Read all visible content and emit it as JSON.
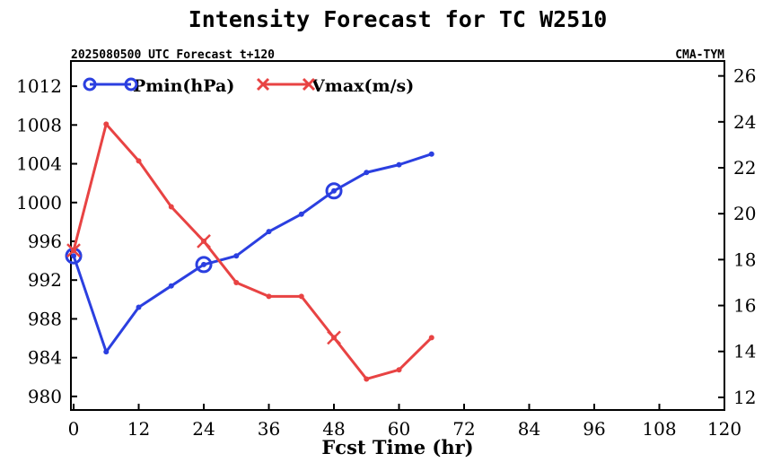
{
  "chart_data": {
    "type": "line",
    "title": "Intensity Forecast for TC W2510",
    "subtitle_left": "2025080500 UTC Forecast t+120",
    "subtitle_right": "CMA-TYM",
    "xlabel": "Fcst Time (hr)",
    "xlim": [
      -0.5,
      120
    ],
    "xticks": [
      0,
      12,
      24,
      36,
      48,
      60,
      72,
      84,
      96,
      108,
      120
    ],
    "y_left": {
      "lim": [
        978.6,
        1014.6
      ],
      "ticks": [
        980,
        984,
        988,
        992,
        996,
        1000,
        1004,
        1008,
        1012
      ]
    },
    "y_right": {
      "lim": [
        11.45,
        26.65
      ],
      "ticks": [
        12,
        14,
        16,
        18,
        20,
        22,
        24,
        26
      ]
    },
    "x": [
      0,
      6,
      12,
      18,
      24,
      30,
      36,
      42,
      48,
      54,
      60,
      66
    ],
    "series": [
      {
        "name": "Pmin(hPa)",
        "axis": "left",
        "color": "#2b3fe0",
        "marker": "circle",
        "marker_every": 4,
        "values": [
          994.5,
          984.6,
          989.2,
          991.4,
          993.6,
          994.5,
          997.0,
          998.8,
          1001.2,
          1003.1,
          1003.9,
          1005.0
        ]
      },
      {
        "name": "Vmax(m/s)",
        "axis": "right",
        "color": "#e84343",
        "marker": "x",
        "marker_every": 4,
        "values": [
          18.4,
          23.9,
          22.3,
          20.3,
          18.8,
          17.0,
          16.4,
          16.4,
          14.6,
          12.8,
          13.2,
          14.6
        ]
      }
    ],
    "legend": "top-left",
    "grid": false
  }
}
